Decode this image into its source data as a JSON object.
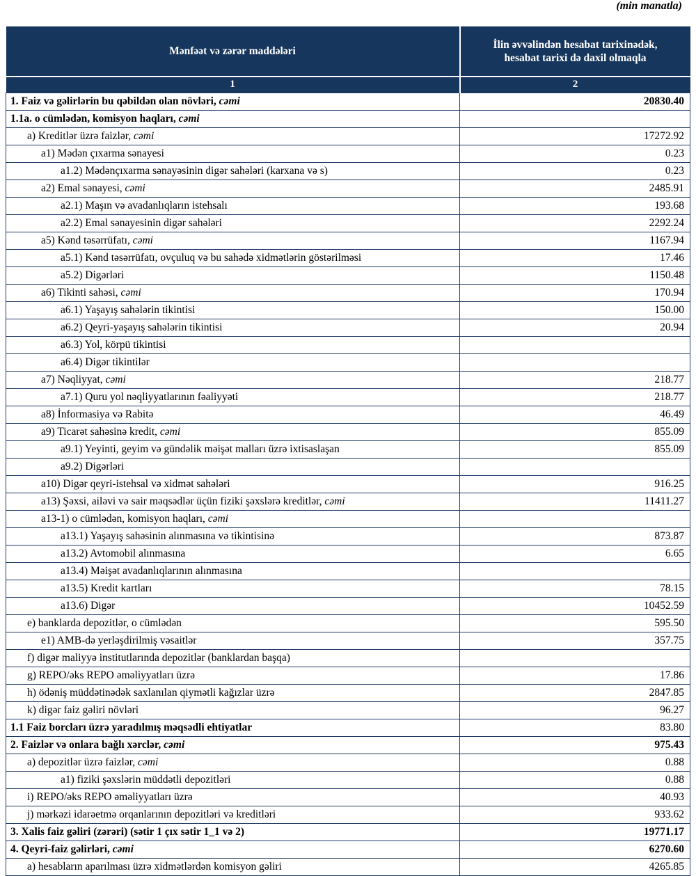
{
  "page": {
    "units_note": "(min manatla)"
  },
  "colors": {
    "header_bg": "#17365d",
    "border": "#1f3864"
  },
  "table": {
    "header": {
      "items_col": "Mənfəət və zərər maddələri",
      "value_col": "İlin əvvəlindən hesabat tarixinədək, hesabat tarixi də daxil olmaqla",
      "items_col_num": "1",
      "value_col_num": "2"
    },
    "rows": [
      {
        "label": "1. Faiz və gəlirlərin bu qəbildən olan növləri, ",
        "em": "cəmi",
        "value": "20830.40",
        "indent": 0,
        "bold": true
      },
      {
        "label": "1.1a. o cümlədən, komisyon haqları, ",
        "em": "cəmi",
        "value": "",
        "indent": 0,
        "bold": true
      },
      {
        "label": "a) Kreditlər üzrə faizlər, ",
        "em": "cəmi",
        "value": "17272.92",
        "indent": 1
      },
      {
        "label": "a1) Mədən çıxarma sənayesi",
        "value": "0.23",
        "indent": 2
      },
      {
        "label": "a1.2) Mədənçıxarma sənayəsinin digər sahələri (karxana və s)",
        "value": "0.23",
        "indent": 3
      },
      {
        "label": "a2) Emal sənayesi, ",
        "em": "cəmi",
        "value": "2485.91",
        "indent": 2
      },
      {
        "label": "a2.1) Maşın və avadanlıqların istehsalı",
        "value": "193.68",
        "indent": 3
      },
      {
        "label": "a2.2) Emal sənayesinin digər sahələri",
        "value": "2292.24",
        "indent": 3
      },
      {
        "label": "a5) Kənd təsərrüfatı, ",
        "em": "cəmi",
        "value": "1167.94",
        "indent": 2
      },
      {
        "label": "a5.1) Kənd təsərrüfatı, ovçuluq və bu sahədə xidmətlərin göstərilməsi",
        "value": "17.46",
        "indent": 3
      },
      {
        "label": "a5.2) Digərləri",
        "value": "1150.48",
        "indent": 3
      },
      {
        "label": "a6) Tikinti sahəsi, ",
        "em": "cəmi",
        "value": "170.94",
        "indent": 2
      },
      {
        "label": "a6.1) Yaşayış sahələrin tikintisi",
        "value": "150.00",
        "indent": 3
      },
      {
        "label": "a6.2) Qeyri-yaşayış sahələrin tikintisi",
        "value": "20.94",
        "indent": 3
      },
      {
        "label": "a6.3) Yol, körpü tikintisi",
        "value": "",
        "indent": 3
      },
      {
        "label": "a6.4) Digər tikintilər",
        "value": "",
        "indent": 3
      },
      {
        "label": "a7) Nəqliyyat, ",
        "em": "cəmi",
        "value": "218.77",
        "indent": 2
      },
      {
        "label": "a7.1) Quru yol nəqliyyatlarının fəaliyyəti",
        "value": "218.77",
        "indent": 3
      },
      {
        "label": "a8)  İnformasiya və Rabitə",
        "value": "46.49",
        "indent": 2
      },
      {
        "label": "a9) Ticarət sahəsinə kredit, ",
        "em": "cəmi",
        "value": "855.09",
        "indent": 2
      },
      {
        "label": "a9.1) Yeyinti, geyim və gündəlik məişət malları üzrə ixtisaslaşan",
        "value": "855.09",
        "indent": 3
      },
      {
        "label": "a9.2) Digərləri",
        "value": "",
        "indent": 3
      },
      {
        "label": "a10) Digər qeyri-istehsal və xidmət sahələri",
        "value": "916.25",
        "indent": 2
      },
      {
        "label": "a13) Şəxsi, ailəvi və sair məqsədlər üçün fiziki şəxslərə kreditlər, ",
        "em": "cəmi",
        "value": "11411.27",
        "indent": 2
      },
      {
        "label": "a13-1) o cümlədən, komisyon haqları, ",
        "em": "cəmi",
        "value": "",
        "indent": 2
      },
      {
        "label": "a13.1) Yaşayış sahəsinin alınmasına və tikintisinə",
        "value": "873.87",
        "indent": 3
      },
      {
        "label": "a13.2) Avtomobil alınmasına",
        "value": "6.65",
        "indent": 3
      },
      {
        "label": "a13.4) Məişət avadanlıqlarının alınmasına",
        "value": "",
        "indent": 3
      },
      {
        "label": "a13.5) Kredit kartları",
        "value": "78.15",
        "indent": 3
      },
      {
        "label": "a13.6) Digər",
        "value": "10452.59",
        "indent": 3
      },
      {
        "label": "e) banklarda depozitlər, o cümlədən",
        "value": "595.50",
        "indent": 1
      },
      {
        "label": "e1)  AMB-də yerləşdirilmiş vəsaitlər",
        "value": "357.75",
        "indent": 2
      },
      {
        "label": "f) digər maliyyə institutlarında depozitlər (banklardan başqa)",
        "value": "",
        "indent": 1
      },
      {
        "label": "g) REPO/əks REPO əməliyyatları üzrə",
        "value": "17.86",
        "indent": 1
      },
      {
        "label": "h) ödəniş müddətinədək saxlanılan qiymətli kağızlar üzrə",
        "value": "2847.85",
        "indent": 1
      },
      {
        "label": "k) digər faiz gəliri növləri",
        "value": "96.27",
        "indent": 1
      },
      {
        "label": "1.1 Faiz borcları üzrə yaradılmış məqsədli ehtiyatlar",
        "value": "83.80",
        "indent": 0,
        "bold": true,
        "value_bold": false
      },
      {
        "label": "2. Faizlər və onlara bağlı xərclər, ",
        "em": "cəmi",
        "value": "975.43",
        "indent": 0,
        "bold": true
      },
      {
        "label": "a) depozitlər üzrə faizlər, ",
        "em": "cəmi",
        "value": "0.88",
        "indent": 1
      },
      {
        "label": "a1) fiziki şəxslərin müddətli depozitləri",
        "value": "0.88",
        "indent": 3
      },
      {
        "label": "i) REPO/əks REPO əməliyyatları üzrə",
        "value": "40.93",
        "indent": 1
      },
      {
        "label": "j) mərkəzi idarəetmə orqanlarının depozitləri və kreditləri",
        "value": "933.62",
        "indent": 1
      },
      {
        "label": "3. Xalis faiz gəliri (zərəri) (sətir 1 çıx sətir 1_1 və 2)",
        "value": "19771.17",
        "indent": 0,
        "bold": true
      },
      {
        "label": "4. Qeyri-faiz gəlirləri, ",
        "em": "cəmi",
        "value": "6270.60",
        "indent": 0,
        "bold": true
      },
      {
        "label": "a) hesabların aparılması üzrə xidmətlərdən komisyon gəliri",
        "value": "4265.85",
        "indent": 1
      }
    ]
  }
}
